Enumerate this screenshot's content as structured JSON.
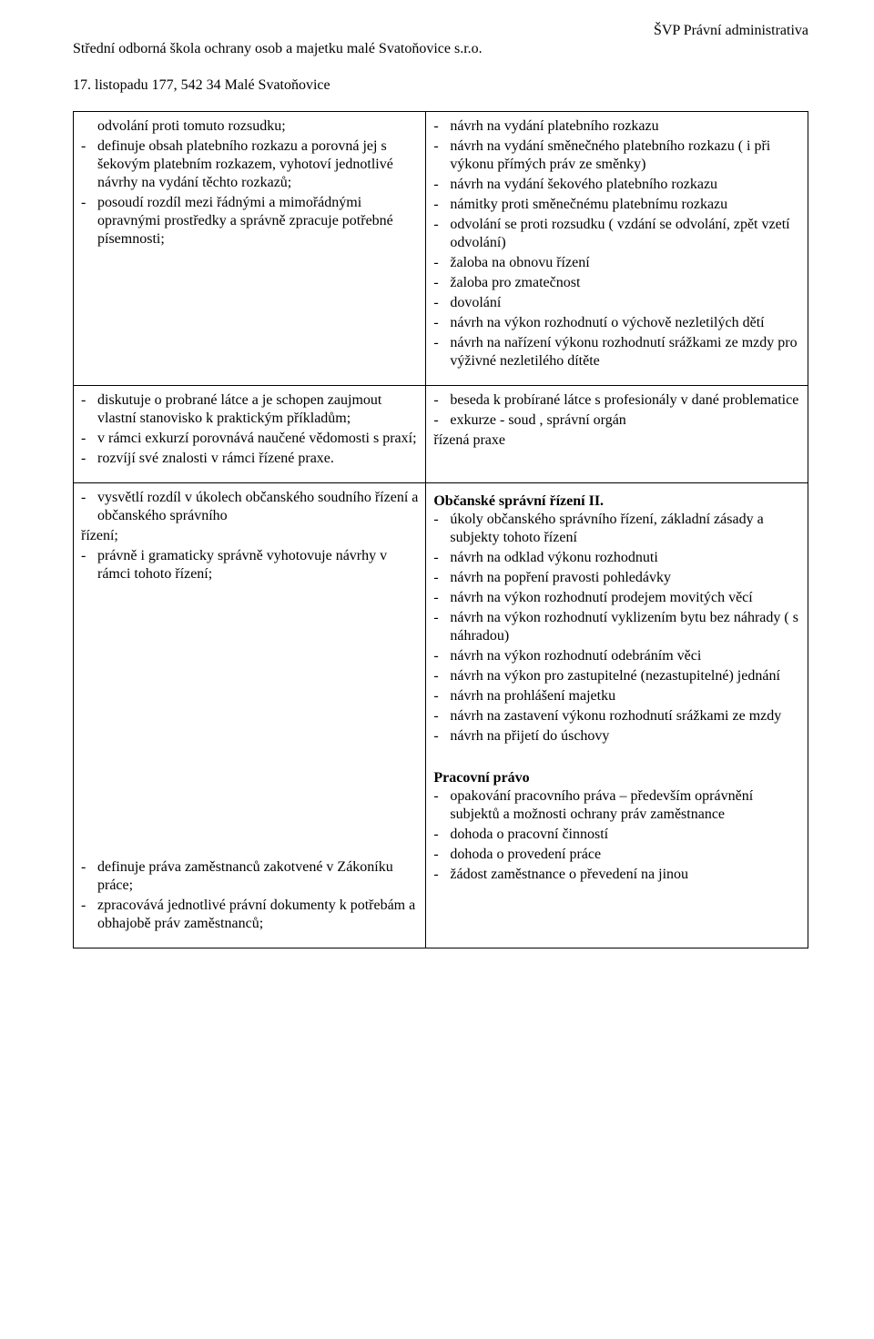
{
  "header": {
    "left_line1": "Střední odborná škola ochrany osob a majetku malé Svatoňovice s.r.o.",
    "left_line2": "17. listopadu 177,  542 34  Malé Svatoňovice",
    "right": "ŠVP  Právní administrativa"
  },
  "rows": [
    {
      "left": [
        {
          "t": "cont",
          "v": "odvolání proti tomuto rozsudku;"
        },
        {
          "t": "li",
          "v": "definuje obsah platebního rozkazu a porovná jej s šekovým platebním rozkazem, vyhotoví jednotlivé návrhy na vydání těchto rozkazů;"
        },
        {
          "t": "li",
          "v": "posoudí rozdíl mezi řádnými a mimořádnými opravnými prostředky a správně zpracuje potřebné písemnosti;"
        }
      ],
      "right": [
        {
          "t": "li",
          "v": "návrh na vydání platebního rozkazu"
        },
        {
          "t": "li",
          "v": "návrh na vydání směnečného platebního rozkazu ( i při výkonu přímých práv ze směnky)"
        },
        {
          "t": "li",
          "v": "návrh na vydání šekového platebního rozkazu"
        },
        {
          "t": "li",
          "v": "námitky proti směnečnému platebnímu rozkazu"
        },
        {
          "t": "li",
          "v": "odvolání se proti rozsudku ( vzdání se odvolání, zpět vzetí odvolání)"
        },
        {
          "t": "li",
          "v": "žaloba na obnovu řízení"
        },
        {
          "t": "li",
          "v": "žaloba pro zmatečnost"
        },
        {
          "t": "li",
          "v": "dovolání"
        },
        {
          "t": "li",
          "v": "návrh na výkon rozhodnutí o výchově nezletilých dětí"
        },
        {
          "t": "li",
          "v": "návrh na nařízení výkonu rozhodnutí srážkami ze mzdy pro výživné nezletilého dítěte"
        }
      ]
    },
    {
      "left": [
        {
          "t": "li",
          "v": "diskutuje o probrané látce a je schopen zaujmout vlastní  stanovisko k praktickým příkladům;"
        },
        {
          "t": "li",
          "v": "v rámci exkurzí porovnává naučené vědomosti s praxí;"
        },
        {
          "t": "li",
          "v": "rozvíjí své znalosti v rámci řízené praxe."
        }
      ],
      "right": [
        {
          "t": "li",
          "v": "beseda k probírané látce s profesionály v dané problematice"
        },
        {
          "t": "li",
          "v": "exkurze -  soud , správní orgán"
        },
        {
          "t": "plain",
          "v": "řízená praxe"
        }
      ]
    },
    {
      "left": [
        {
          "t": "li",
          "v": "vysvětlí rozdíl v úkolech občanského soudního řízení a občanského správního"
        },
        {
          "t": "plain",
          "v": "řízení;"
        },
        {
          "t": "li",
          "v": "   právně i gramaticky správně vyhotovuje návrhy v rámci tohoto řízení;"
        },
        {
          "t": "spacer"
        },
        {
          "t": "spacer"
        },
        {
          "t": "spacer"
        },
        {
          "t": "spacer"
        },
        {
          "t": "spacer"
        },
        {
          "t": "spacer"
        },
        {
          "t": "spacer"
        },
        {
          "t": "spacer"
        },
        {
          "t": "spacer"
        },
        {
          "t": "spacer"
        },
        {
          "t": "spacer"
        },
        {
          "t": "spacer"
        },
        {
          "t": "spacer"
        },
        {
          "t": "spacer"
        },
        {
          "t": "spacer"
        },
        {
          "t": "li",
          "v": "definuje práva zaměstnanců zakotvené v Zákoníku práce;"
        },
        {
          "t": "li",
          "v": "   zpracovává jednotlivé právní dokumenty k potřebám a obhajobě práv zaměstnanců;"
        }
      ],
      "right": [
        {
          "t": "title",
          "v": "Občanské správní řízení  II."
        },
        {
          "t": "li",
          "v": "úkoly občanského správního řízení, základní zásady a subjekty tohoto řízení"
        },
        {
          "t": "li",
          "v": "návrh na odklad výkonu rozhodnuti"
        },
        {
          "t": "li",
          "v": "návrh na popření pravosti pohledávky"
        },
        {
          "t": "li",
          "v": "návrh na výkon rozhodnutí prodejem movitých věcí"
        },
        {
          "t": "li",
          "v": "návrh na výkon rozhodnutí vyklizením bytu bez náhrady ( s náhradou)"
        },
        {
          "t": "li",
          "v": "návrh na výkon rozhodnutí odebráním věci"
        },
        {
          "t": "li",
          "v": "návrh na výkon pro zastupitelné (nezastupitelné) jednání"
        },
        {
          "t": "li",
          "v": "návrh na prohlášení majetku"
        },
        {
          "t": "li",
          "v": "návrh na zastavení výkonu rozhodnutí srážkami ze mzdy"
        },
        {
          "t": "li",
          "v": "návrh na přijetí do úschovy"
        },
        {
          "t": "spacer"
        },
        {
          "t": "title",
          "v": "Pracovní právo"
        },
        {
          "t": "li",
          "v": "opakování  pracovního práva – především oprávnění subjektů a možnosti ochrany práv zaměstnance"
        },
        {
          "t": "li",
          "v": "dohoda o pracovní činností"
        },
        {
          "t": "li",
          "v": "dohoda o provedení práce"
        },
        {
          "t": "li",
          "v": "žádost zaměstnance o převedení na jinou"
        }
      ]
    }
  ]
}
